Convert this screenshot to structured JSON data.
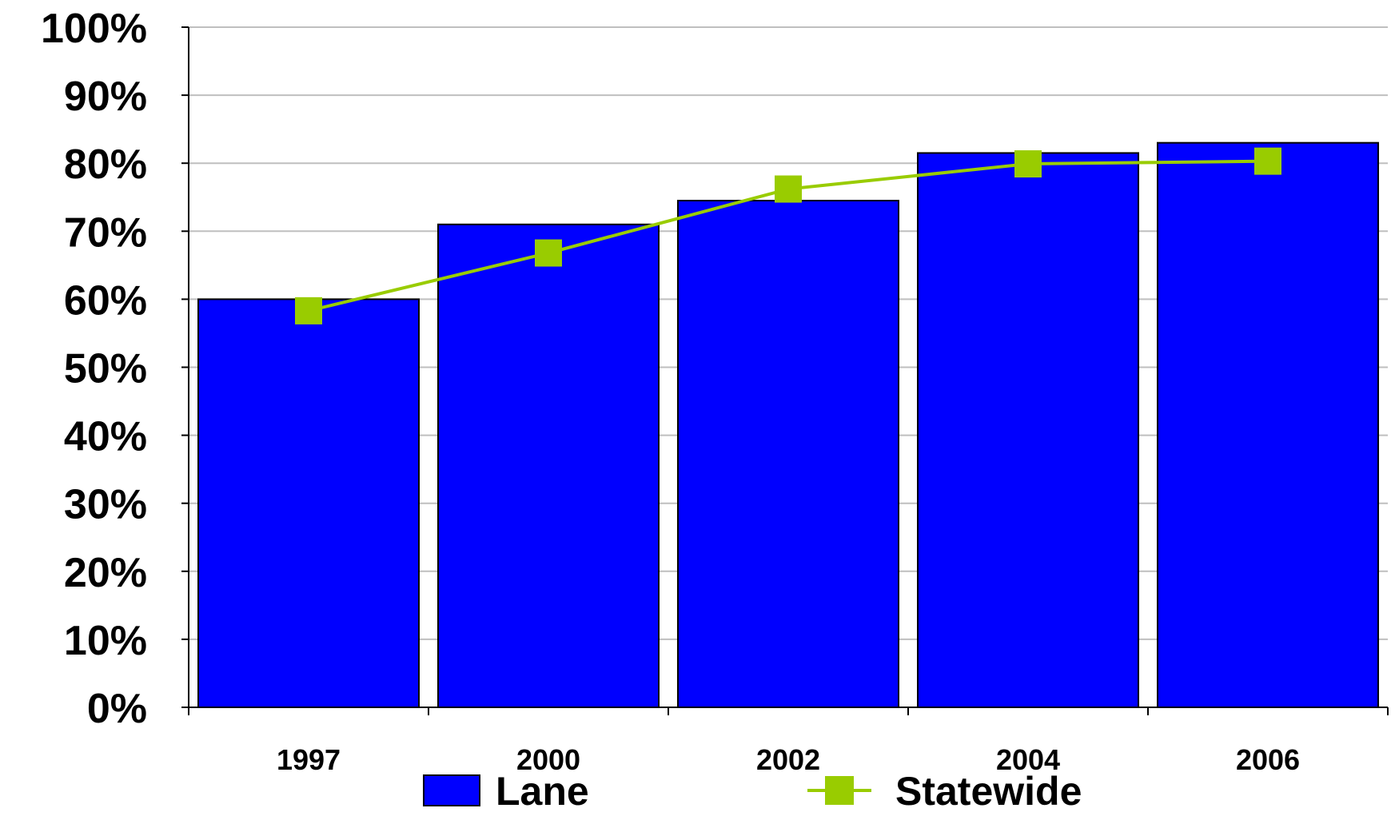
{
  "chart_data": {
    "type": "bar",
    "categories": [
      "1997",
      "2000",
      "2002",
      "2004",
      "2006"
    ],
    "series": [
      {
        "name": "Lane",
        "type": "bar",
        "color": "#0000FF",
        "values": [
          60,
          71,
          74.5,
          81.5,
          83
        ]
      },
      {
        "name": "Statewide",
        "type": "line",
        "color": "#99CC00",
        "values": [
          58.3,
          66.8,
          76.2,
          79.9,
          80.3
        ]
      }
    ],
    "title": "",
    "xlabel": "",
    "ylabel": "",
    "ylim": [
      0,
      100
    ],
    "yticks": [
      "0%",
      "10%",
      "20%",
      "30%",
      "40%",
      "50%",
      "60%",
      "70%",
      "80%",
      "90%",
      "100%"
    ],
    "grid": true,
    "legend": "bottom"
  }
}
